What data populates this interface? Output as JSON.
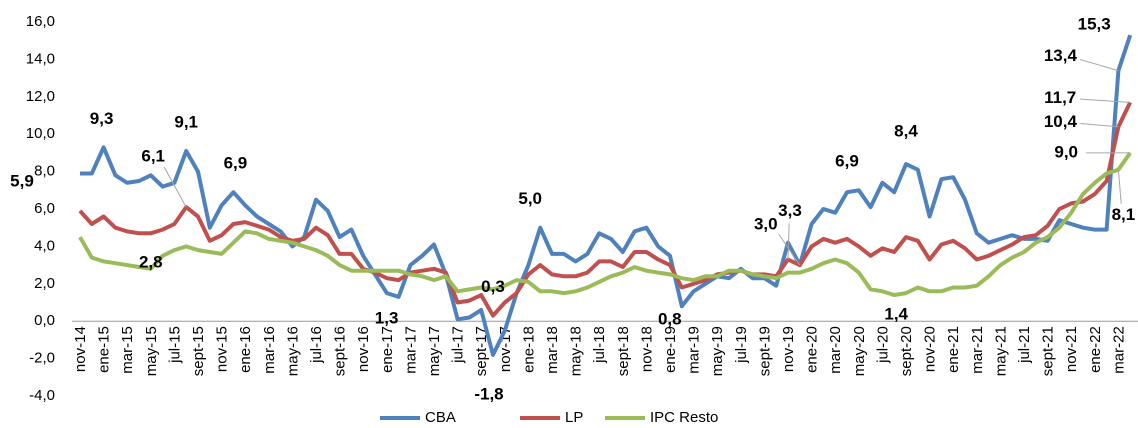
{
  "chart_data": {
    "type": "line",
    "categories": [
      "nov-14",
      null,
      "ene-15",
      null,
      "mar-15",
      null,
      "may-15",
      null,
      "jul-15",
      null,
      "sept-15",
      null,
      "nov-15",
      null,
      "ene-16",
      null,
      "mar-16",
      null,
      "may-16",
      null,
      "jul-16",
      null,
      "sept-16",
      null,
      "nov-16",
      null,
      "ene-17",
      null,
      "mar-17",
      null,
      "may-17",
      null,
      "jul-17",
      null,
      "sept-17",
      null,
      "nov-17",
      null,
      "ene-18",
      null,
      "mar-18",
      null,
      "may-18",
      null,
      "jul-18",
      null,
      "sept-18",
      null,
      "nov-18",
      null,
      "ene-19",
      null,
      "mar-19",
      null,
      "may-19",
      null,
      "jul-19",
      null,
      "sept-19",
      null,
      "nov-19",
      null,
      "ene-20",
      null,
      "mar-20",
      null,
      "may-20",
      null,
      "jul-20",
      null,
      "sept-20",
      null,
      "nov-20",
      null,
      "ene-21",
      null,
      "mar-21",
      null,
      "may-21",
      null,
      "jul-21",
      null,
      "sept-21",
      null,
      "nov-21",
      null,
      "ene-22",
      null,
      "mar-22",
      null
    ],
    "series": [
      {
        "name": "CBA",
        "color": "#4f81bd",
        "values": [
          7.9,
          7.9,
          9.3,
          7.8,
          7.4,
          7.5,
          7.8,
          7.2,
          7.4,
          9.1,
          8.0,
          5.0,
          6.2,
          6.9,
          6.2,
          5.6,
          5.2,
          4.8,
          4.0,
          4.5,
          6.5,
          5.9,
          4.5,
          4.9,
          3.5,
          2.5,
          1.5,
          1.3,
          3.0,
          3.5,
          4.1,
          2.5,
          0.1,
          0.2,
          0.6,
          -1.8,
          -0.5,
          1.5,
          3.0,
          5.0,
          3.6,
          3.6,
          3.2,
          3.6,
          4.7,
          4.4,
          3.7,
          4.8,
          5.0,
          4.0,
          3.5,
          0.8,
          1.6,
          2.0,
          2.4,
          2.3,
          2.8,
          2.3,
          2.3,
          1.9,
          4.2,
          3.0,
          5.2,
          6.0,
          5.8,
          6.9,
          7.0,
          6.1,
          7.4,
          6.9,
          8.4,
          8.1,
          5.6,
          7.6,
          7.7,
          6.5,
          4.7,
          4.2,
          4.4,
          4.6,
          4.4,
          4.4,
          4.3,
          5.4,
          5.2,
          5.0,
          4.9,
          4.9,
          13.4,
          15.3
        ],
        "value_labels": [
          null,
          null,
          "9,3",
          null,
          null,
          null,
          null,
          null,
          null,
          "9,1",
          null,
          null,
          null,
          "6,9",
          null,
          null,
          null,
          null,
          null,
          null,
          null,
          null,
          null,
          null,
          null,
          null,
          null,
          "1,3",
          null,
          null,
          null,
          null,
          null,
          null,
          null,
          "-1,8",
          null,
          null,
          null,
          "5,0",
          null,
          null,
          null,
          null,
          null,
          null,
          null,
          null,
          null,
          null,
          null,
          "0,8",
          null,
          null,
          null,
          null,
          null,
          null,
          null,
          null,
          null,
          "3,0",
          null,
          null,
          null,
          "6,9",
          null,
          null,
          null,
          null,
          "8,4",
          null,
          null,
          null,
          null,
          null,
          null,
          null,
          null,
          null,
          null,
          null,
          null,
          null,
          null,
          null,
          null,
          null,
          "13,4",
          "15,3"
        ]
      },
      {
        "name": "LP",
        "color": "#c0504d",
        "values": [
          5.9,
          5.2,
          5.6,
          5.0,
          4.8,
          4.7,
          4.7,
          4.9,
          5.2,
          6.1,
          5.6,
          4.3,
          4.6,
          5.2,
          5.3,
          5.1,
          4.9,
          4.5,
          4.3,
          4.4,
          5.0,
          4.6,
          3.6,
          3.6,
          2.8,
          2.6,
          2.3,
          2.2,
          2.6,
          2.7,
          2.8,
          2.6,
          1.0,
          1.1,
          1.4,
          0.3,
          1.0,
          1.5,
          2.5,
          3.0,
          2.5,
          2.4,
          2.4,
          2.6,
          3.2,
          3.2,
          2.9,
          3.7,
          3.7,
          3.3,
          3.0,
          1.8,
          2.0,
          2.2,
          2.5,
          2.6,
          2.7,
          2.5,
          2.5,
          2.4,
          3.3,
          3.0,
          4.0,
          4.4,
          4.2,
          4.4,
          4.0,
          3.5,
          3.9,
          3.7,
          4.5,
          4.3,
          3.3,
          4.1,
          4.3,
          3.9,
          3.3,
          3.5,
          3.8,
          4.1,
          4.5,
          4.6,
          5.1,
          6.0,
          6.3,
          6.4,
          6.8,
          7.5,
          10.4,
          11.7
        ],
        "value_labels": [
          "5,9",
          null,
          null,
          null,
          null,
          null,
          null,
          null,
          null,
          "6,1",
          null,
          null,
          null,
          null,
          null,
          null,
          null,
          null,
          null,
          null,
          null,
          null,
          null,
          null,
          null,
          null,
          null,
          null,
          null,
          null,
          null,
          null,
          null,
          null,
          null,
          "0,3",
          null,
          null,
          null,
          null,
          null,
          null,
          null,
          null,
          null,
          null,
          null,
          null,
          null,
          null,
          null,
          null,
          null,
          null,
          null,
          null,
          null,
          null,
          null,
          null,
          "3,3",
          null,
          null,
          null,
          null,
          null,
          null,
          null,
          null,
          null,
          null,
          null,
          null,
          null,
          null,
          null,
          null,
          null,
          null,
          null,
          null,
          null,
          null,
          null,
          null,
          null,
          null,
          null,
          "10,4",
          "11,7"
        ]
      },
      {
        "name": "IPC Resto",
        "color": "#9bbb59",
        "values": [
          4.5,
          3.4,
          3.2,
          3.1,
          3.0,
          2.9,
          2.8,
          3.5,
          3.8,
          4.0,
          3.8,
          3.7,
          3.6,
          4.2,
          4.8,
          4.7,
          4.4,
          4.3,
          4.2,
          4.0,
          3.8,
          3.5,
          3.0,
          2.7,
          2.7,
          2.7,
          2.7,
          2.7,
          2.5,
          2.4,
          2.2,
          2.4,
          1.6,
          1.7,
          1.8,
          1.7,
          1.9,
          2.2,
          2.1,
          1.6,
          1.6,
          1.5,
          1.6,
          1.8,
          2.1,
          2.4,
          2.6,
          2.9,
          2.7,
          2.6,
          2.5,
          2.3,
          2.2,
          2.4,
          2.4,
          2.7,
          2.7,
          2.5,
          2.4,
          2.3,
          2.6,
          2.6,
          2.8,
          3.1,
          3.3,
          3.1,
          2.6,
          1.7,
          1.6,
          1.4,
          1.5,
          1.8,
          1.6,
          1.6,
          1.8,
          1.8,
          1.9,
          2.4,
          3.0,
          3.4,
          3.7,
          4.2,
          4.5,
          5.0,
          5.8,
          6.8,
          7.4,
          7.9,
          8.1,
          9.0
        ],
        "value_labels": [
          null,
          null,
          null,
          null,
          null,
          null,
          "2,8",
          null,
          null,
          null,
          null,
          null,
          null,
          null,
          null,
          null,
          null,
          null,
          null,
          null,
          null,
          null,
          null,
          null,
          null,
          null,
          null,
          null,
          null,
          null,
          null,
          null,
          null,
          null,
          null,
          null,
          null,
          null,
          null,
          null,
          null,
          null,
          null,
          null,
          null,
          null,
          null,
          null,
          null,
          null,
          null,
          null,
          null,
          null,
          null,
          null,
          null,
          null,
          null,
          null,
          null,
          null,
          null,
          null,
          null,
          null,
          null,
          null,
          null,
          "1,4",
          null,
          null,
          null,
          null,
          null,
          null,
          null,
          null,
          null,
          null,
          null,
          null,
          null,
          null,
          null,
          null,
          null,
          null,
          "8,1",
          "9,0"
        ]
      }
    ],
    "ylim": [
      -4,
      16
    ],
    "yticks": [
      {
        "value": -4,
        "label": "-4,0"
      },
      {
        "value": -2,
        "label": "-2,0"
      },
      {
        "value": 0,
        "label": "0,0"
      },
      {
        "value": 2,
        "label": "2,0"
      },
      {
        "value": 4,
        "label": "4,0"
      },
      {
        "value": 6,
        "label": "6,0"
      },
      {
        "value": 8,
        "label": "8,0"
      },
      {
        "value": 10,
        "label": "10,0"
      },
      {
        "value": 12,
        "label": "12,0"
      },
      {
        "value": 14,
        "label": "14,0"
      },
      {
        "value": 16,
        "label": "16,0"
      }
    ],
    "grid": false,
    "legend": "bottom"
  }
}
